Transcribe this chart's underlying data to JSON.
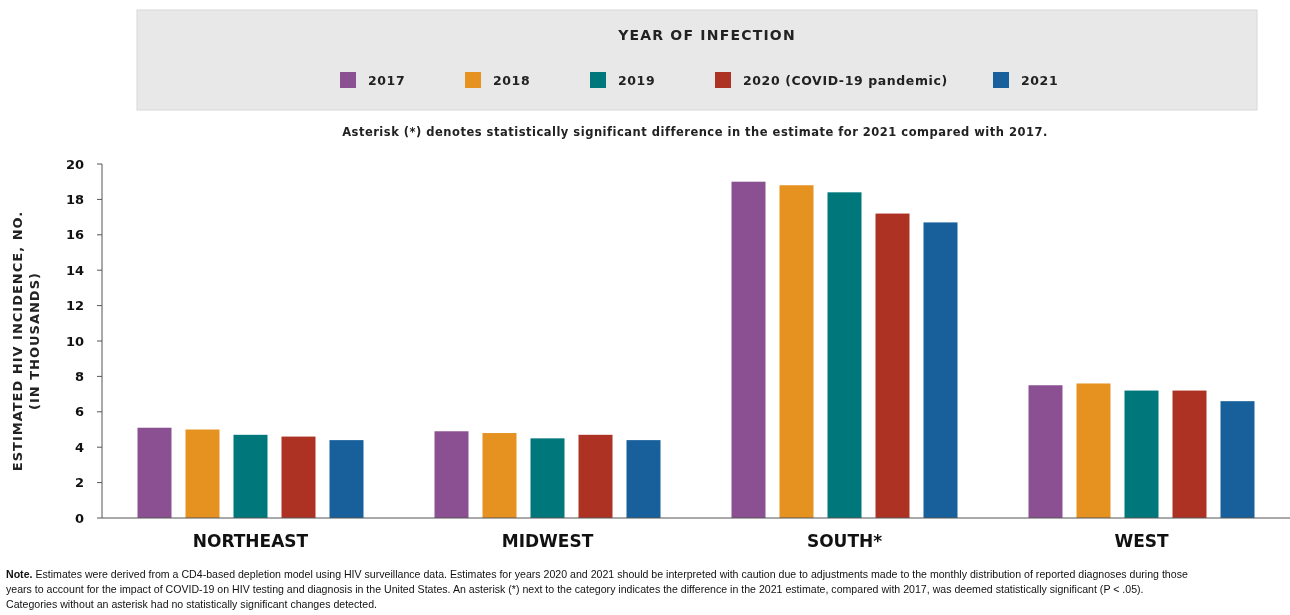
{
  "chart_data": {
    "type": "bar",
    "subtitle": "Asterisk (*) denotes statistically significant difference in the estimate for 2021 compared with 2017.",
    "legend_title": "YEAR OF INFECTION",
    "ylabel": "ESTIMATED HIV INCIDENCE, NO.\n(IN THOUSANDS)",
    "categories": [
      "NORTHEAST",
      "MIDWEST",
      "SOUTH*",
      "WEST"
    ],
    "series": [
      {
        "name": "2017",
        "color": "#8b5092",
        "values": [
          5.1,
          4.9,
          19.0,
          7.5
        ]
      },
      {
        "name": "2018",
        "color": "#e69221",
        "values": [
          5.0,
          4.8,
          18.8,
          7.6
        ]
      },
      {
        "name": "2019",
        "color": "#00777a",
        "values": [
          4.7,
          4.5,
          18.4,
          7.2
        ]
      },
      {
        "name": "2020 (COVID-19 pandemic)",
        "color": "#ae3224",
        "values": [
          4.6,
          4.7,
          17.2,
          7.2
        ]
      },
      {
        "name": "2021",
        "color": "#17609c",
        "values": [
          4.4,
          4.4,
          16.7,
          6.6
        ]
      }
    ],
    "ylim": [
      0,
      20
    ],
    "yticks": [
      0,
      2,
      4,
      6,
      8,
      10,
      12,
      14,
      16,
      18,
      20
    ],
    "grid": false,
    "legend": "top",
    "annotations": [
      "Note. Estimates were derived from a CD4-based depletion model using HIV surveillance data. Estimates for years 2020 and 2021 should be interpreted with caution due to adjustments made to the monthly distribution of reported diagnoses during those years to account for the impact of COVID-19 on HIV testing and diagnosis in the United States. An asterisk (*) next to the category indicates the difference in the 2021 estimate, compared with 2017, was deemed statistically significant (P < .05). Categories without an asterisk had no statistically significant changes detected."
    ]
  }
}
